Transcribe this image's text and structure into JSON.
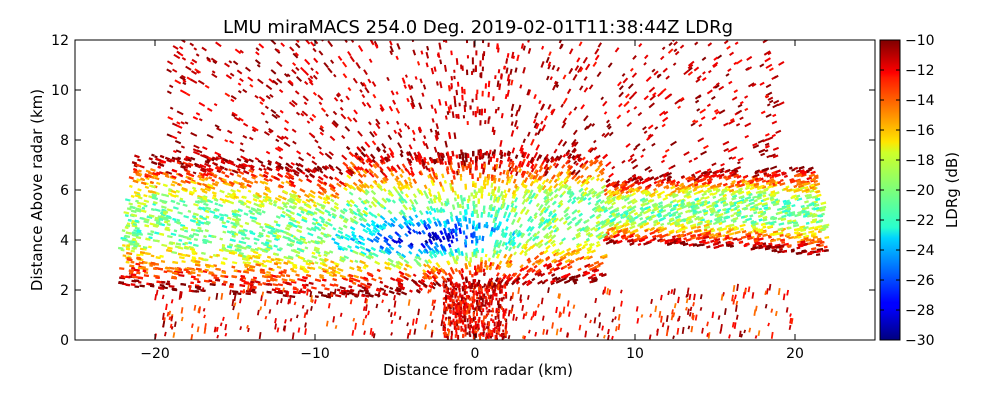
{
  "chart_data": {
    "type": "heatmap",
    "title": "LMU miraMACS 254.0 Deg. 2019-02-01T11:38:44Z  LDRg",
    "xlabel": "Distance from radar (km)",
    "ylabel": "Distance Above radar  (km)",
    "xlim": [
      -25,
      25
    ],
    "ylim": [
      0,
      12
    ],
    "xticks": [
      -20,
      -10,
      0,
      10,
      20
    ],
    "xtick_labels": [
      "−20",
      "−10",
      "0",
      "10",
      "20"
    ],
    "yticks": [
      0,
      2,
      4,
      6,
      8,
      10,
      12
    ],
    "ytick_labels": [
      "0",
      "2",
      "4",
      "6",
      "8",
      "10",
      "12"
    ],
    "colorbar": {
      "label": "LDRg (dB)",
      "range": [
        -30,
        -10
      ],
      "colormap": "jet",
      "ticks": [
        -30,
        -28,
        -26,
        -24,
        -22,
        -20,
        -18,
        -16,
        -14,
        -12,
        -10
      ],
      "tick_labels": [
        "−30",
        "−28",
        "−26",
        "−24",
        "−22",
        "−20",
        "−18",
        "−16",
        "−14",
        "−12",
        "−10"
      ]
    },
    "scan": {
      "azimuth_deg": 254.0,
      "max_range_km": 22,
      "cloud_base_km": 2.0,
      "cloud_top_km": 7.0,
      "sparse_echo_top_km": 12
    }
  }
}
